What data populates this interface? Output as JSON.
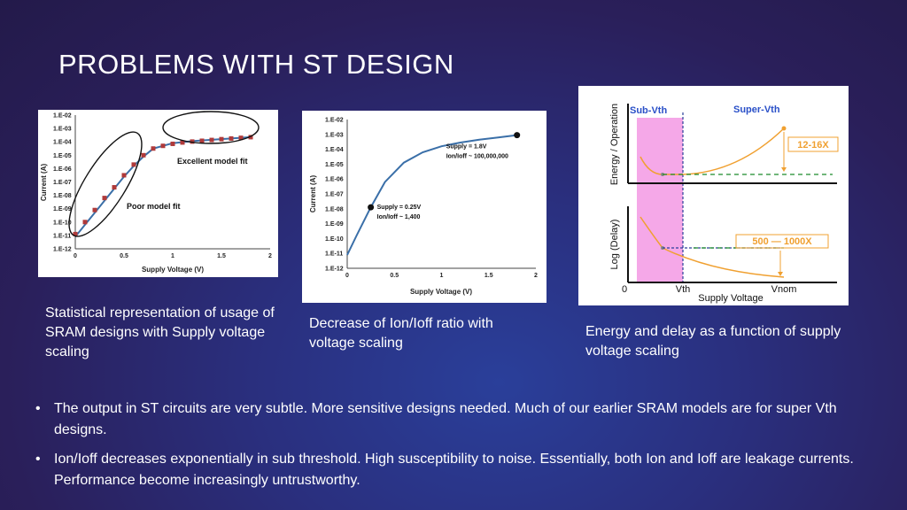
{
  "slide": {
    "title": "PROBLEMS WITH ST DESIGN"
  },
  "captions": {
    "chart1": "Statistical representation of usage of SRAM designs with Supply voltage scaling",
    "chart2": "Decrease of Ion/Ioff ratio with voltage scaling",
    "chart3": "Energy and delay as a function of supply voltage scaling"
  },
  "bullets": [
    "The output in ST circuits are very subtle. More sensitive designs needed. Much of our earlier SRAM models are for super Vth designs.",
    "Ion/Ioff decreases exponentially in sub threshold. High susceptibility to noise. Essentially, both Ion and Ioff are leakage currents. Performance become increasingly untrustworthy."
  ],
  "colors": {
    "curve": "#3a6fa8",
    "marker": "#b03a3a",
    "orange": "#f0a030",
    "pink": "#f5a8e8",
    "green_dash": "#1a8a2a"
  },
  "chart_data": [
    {
      "type": "scatter",
      "xlabel": "Supply Voltage (V)",
      "ylabel": "Current (A)",
      "xlim": [
        0,
        2
      ],
      "ylim_exp": [
        -12,
        -2
      ],
      "x_ticks": [
        "0",
        "0.5",
        "1",
        "1.5",
        "2"
      ],
      "y_ticks": [
        "1.E-02",
        "1.E-03",
        "1.E-04",
        "1.E-05",
        "1.E-06",
        "1.E-07",
        "1.E-08",
        "1.E-09",
        "1.E-10",
        "1.E-11",
        "1.E-12"
      ],
      "curve": {
        "x": [
          0,
          0.1,
          0.2,
          0.3,
          0.4,
          0.5,
          0.6,
          0.7,
          0.8,
          1.0,
          1.2,
          1.4,
          1.6,
          1.8
        ],
        "log_y": [
          -11.1,
          -10.2,
          -9.3,
          -8.4,
          -7.5,
          -6.6,
          -5.8,
          -5.1,
          -4.5,
          -4.1,
          -3.95,
          -3.85,
          -3.75,
          -3.65
        ]
      },
      "markers": {
        "x": [
          0,
          0.1,
          0.2,
          0.3,
          0.4,
          0.5,
          0.6,
          0.7,
          0.8,
          0.9,
          1.0,
          1.1,
          1.2,
          1.3,
          1.4,
          1.5,
          1.6,
          1.7,
          1.8
        ],
        "log_y": [
          -10.9,
          -10.0,
          -9.1,
          -8.2,
          -7.4,
          -6.5,
          -5.7,
          -5.0,
          -4.5,
          -4.3,
          -4.15,
          -4.05,
          -3.98,
          -3.92,
          -3.86,
          -3.8,
          -3.75,
          -3.7,
          -3.65
        ]
      },
      "annotations": [
        "Excellent model fit",
        "Poor model fit"
      ]
    },
    {
      "type": "line",
      "xlabel": "Supply Voltage (V)",
      "ylabel": "Current (A)",
      "xlim": [
        0,
        2
      ],
      "ylim_exp": [
        -12,
        -2
      ],
      "x_ticks": [
        "0",
        "0.5",
        "1",
        "1.5",
        "2"
      ],
      "y_ticks": [
        "1.E-02",
        "1.E-03",
        "1.E-04",
        "1.E-05",
        "1.E-06",
        "1.E-07",
        "1.E-08",
        "1.E-09",
        "1.E-10",
        "1.E-11",
        "1.E-12"
      ],
      "curve": {
        "x": [
          0,
          0.1,
          0.25,
          0.4,
          0.6,
          0.8,
          1.0,
          1.2,
          1.4,
          1.6,
          1.8
        ],
        "log_y": [
          -11.1,
          -9.8,
          -7.9,
          -6.2,
          -4.9,
          -4.2,
          -3.8,
          -3.55,
          -3.35,
          -3.2,
          -3.05
        ]
      },
      "points": [
        {
          "x": 0.25,
          "log_y": -7.9,
          "label1": "Supply = 0.25V",
          "label2": "Ion/Ioff ~ 1,400"
        },
        {
          "x": 1.8,
          "log_y": -3.05,
          "label1": "Supply = 1.8V",
          "label2": "Ion/Ioff ~ 100,000,000"
        }
      ]
    },
    {
      "type": "line",
      "ylabel_top": "Energy / Operation",
      "ylabel_bottom": "Log (Delay)",
      "xlabel": "Supply Voltage",
      "region_labels": [
        "Sub-Vth",
        "Super-Vth"
      ],
      "x_ticks": [
        "0",
        "Vth",
        "Vnom"
      ],
      "annotations": [
        "12-16X",
        "500 — 1000X"
      ]
    }
  ]
}
